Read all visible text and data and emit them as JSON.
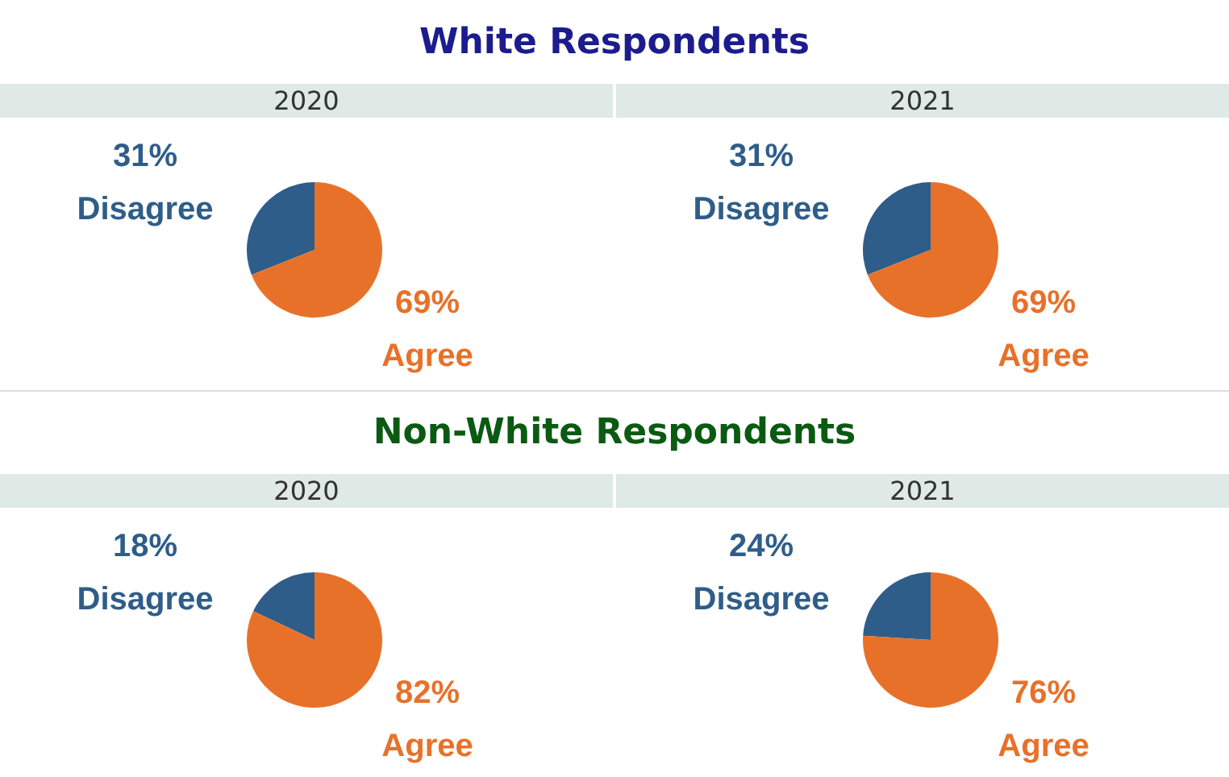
{
  "chart_data": [
    {
      "type": "pie",
      "title": "White Respondents",
      "subtitle": "2020",
      "categories": [
        "Disagree",
        "Agree"
      ],
      "values": [
        31,
        69
      ],
      "colors": [
        "#2f5d8a",
        "#e8712a"
      ],
      "value_labels": [
        "31%",
        "69%"
      ]
    },
    {
      "type": "pie",
      "subtitle": "2021",
      "categories": [
        "Disagree",
        "Agree"
      ],
      "values": [
        31,
        69
      ],
      "colors": [
        "#2f5d8a",
        "#e8712a"
      ],
      "value_labels": [
        "31%",
        "69%"
      ]
    },
    {
      "type": "pie",
      "title": "Non-White Respondents",
      "subtitle": "2020",
      "categories": [
        "Disagree",
        "Agree"
      ],
      "values": [
        18,
        82
      ],
      "colors": [
        "#2f5d8a",
        "#e8712a"
      ],
      "value_labels": [
        "18%",
        "82%"
      ]
    },
    {
      "type": "pie",
      "subtitle": "2021",
      "categories": [
        "Disagree",
        "Agree"
      ],
      "values": [
        24,
        76
      ],
      "colors": [
        "#2f5d8a",
        "#e8712a"
      ],
      "value_labels": [
        "24%",
        "76%"
      ]
    }
  ]
}
